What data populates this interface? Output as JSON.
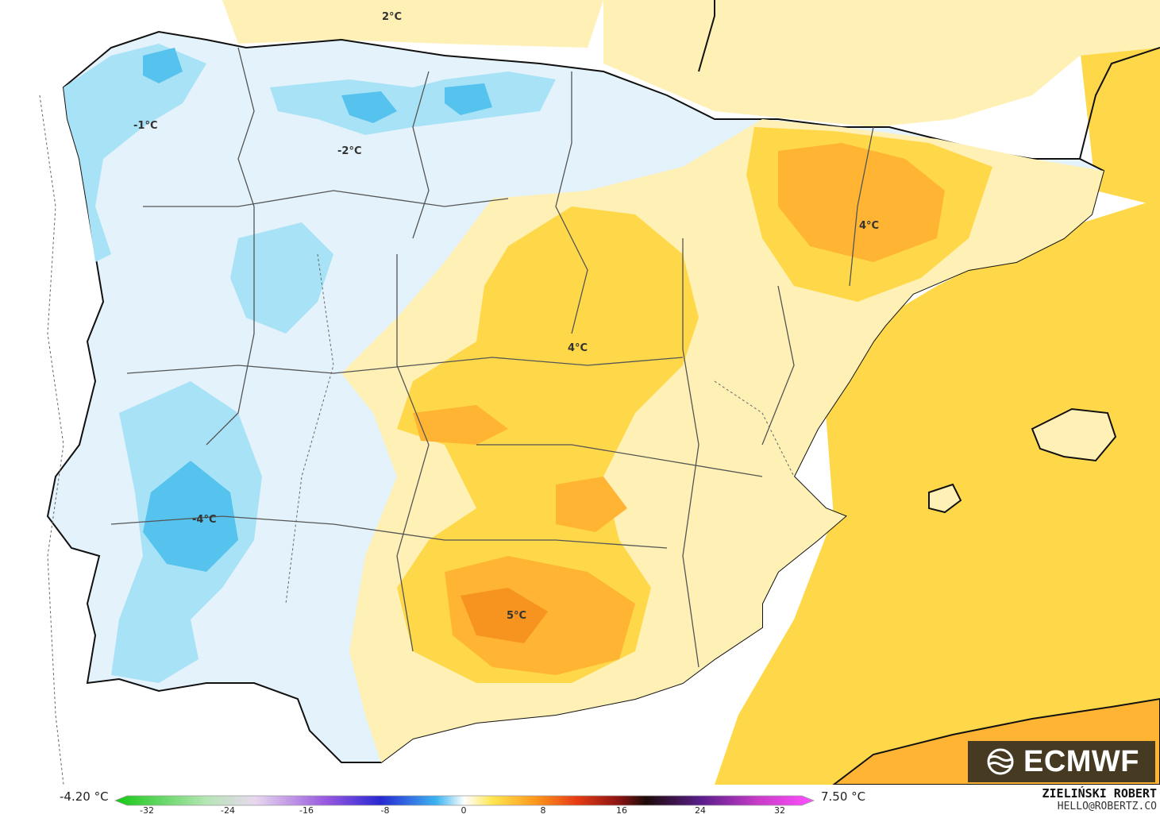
{
  "map": {
    "labels": [
      {
        "text": "2°C"
      },
      {
        "text": "-1°C"
      },
      {
        "text": "-2°C"
      },
      {
        "text": "4°C"
      },
      {
        "text": "4°C"
      },
      {
        "text": "-4°C"
      },
      {
        "text": "5°C"
      }
    ]
  },
  "logo": {
    "text": "ECMWF"
  },
  "legend": {
    "min_label": "-4.20 °C",
    "max_label": "7.50 °C",
    "ticks": [
      "-32",
      "-24",
      "-16",
      "-8",
      "0",
      "8",
      "16",
      "24",
      "32"
    ]
  },
  "credit": {
    "name": "ZIELIŃSKI ROBERT",
    "email": "HELLO@ROBERTZ.CO"
  },
  "colors": {
    "sea": "#ffffff",
    "blue_light": "#e3f2fb",
    "blue_mid": "#a8e2f7",
    "blue_deep": "#55c3ee",
    "yellow_light": "#fff0b5",
    "yellow_mid": "#ffd84a",
    "orange": "#ffb433",
    "orange_deep": "#f79420",
    "border": "#111111"
  }
}
